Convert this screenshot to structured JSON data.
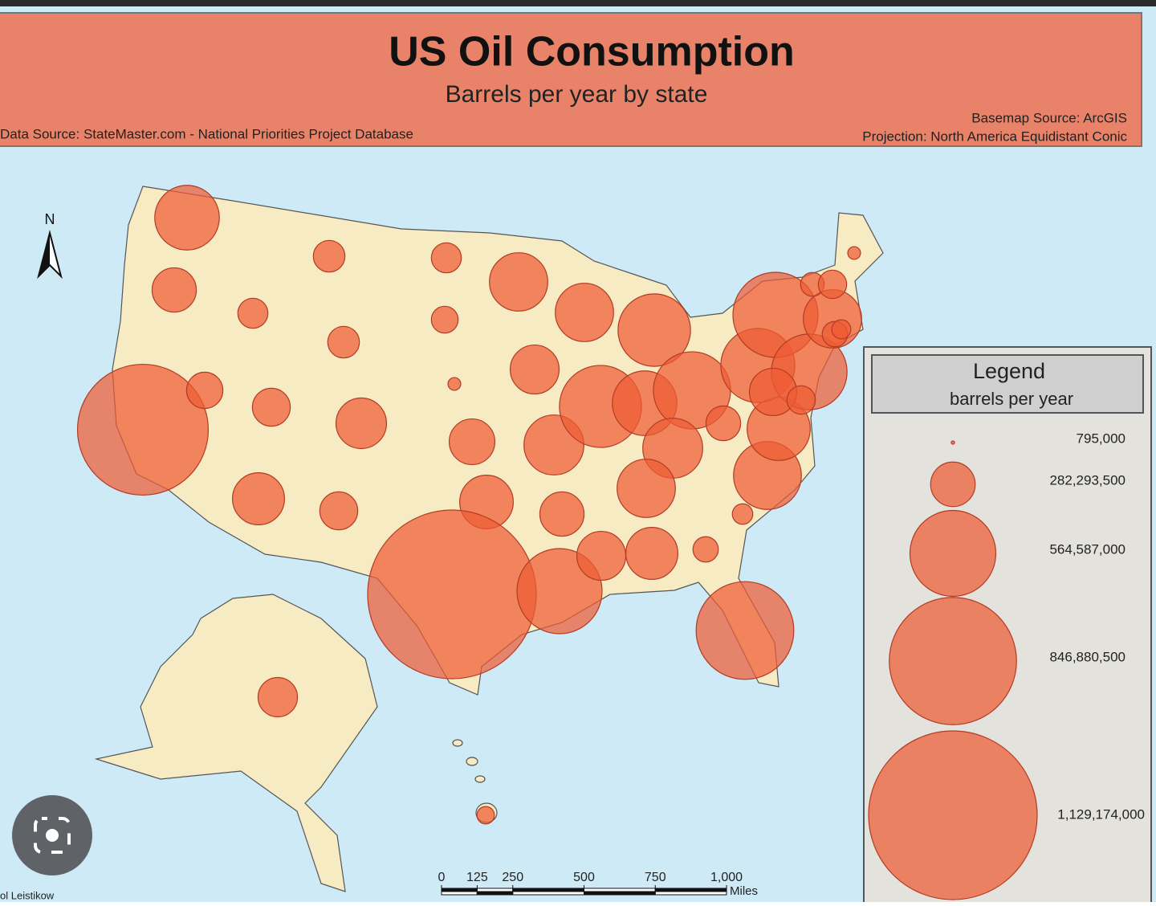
{
  "header": {
    "title": "US Oil Consumption",
    "subtitle": "Barrels per year by state",
    "data_source": "Data Source: StateMaster.com - National Priorities Project Database",
    "basemap_source": "Basemap Source: ArcGIS",
    "projection": "Projection: North America Equidistant Conic"
  },
  "north_label": "N",
  "legend": {
    "title": "Legend",
    "subtitle": "barrels per year",
    "items": [
      {
        "value": 795000,
        "label": "795,000"
      },
      {
        "value": 282293500,
        "label": "282,293,500"
      },
      {
        "value": 564587000,
        "label": "564,587,000"
      },
      {
        "value": 846880500,
        "label": "846,880,500"
      },
      {
        "value": 1129174000,
        "label": "1,129,174,000"
      }
    ]
  },
  "symbols": {
    "values": [
      419000000,
      280000000,
      871000000,
      226000000,
      183000000,
      194000000,
      194000000,
      237000000,
      323000000,
      333000000,
      237000000,
      183000000,
      161000000,
      65000000,
      290000000,
      344000000,
      1129174000,
      376000000,
      312000000,
      387000000,
      280000000,
      559000000,
      376000000,
      538000000,
      473000000,
      419000000,
      505000000,
      387000000,
      376000000,
      312000000,
      333000000,
      151000000,
      645000000,
      118000000,
      441000000,
      409000000,
      215000000,
      484000000,
      559000000,
      495000000,
      301000000,
      172000000,
      376000000,
      151000000,
      108000000,
      140000000,
      172000000,
      65000000,
      247000000,
      97000000
    ]
  },
  "scale_bar": {
    "ticks": [
      0,
      125,
      250,
      500,
      750,
      {
        "value": 1000,
        "label": "1,000"
      }
    ],
    "unit": "Miles"
  },
  "credit": "ol Leistikow"
}
